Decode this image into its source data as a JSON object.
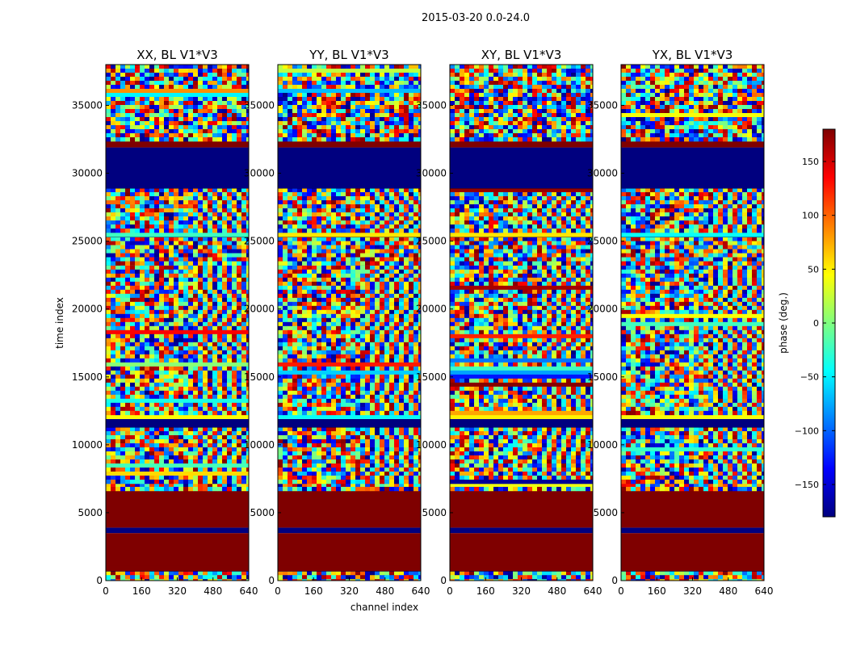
{
  "chart_data": {
    "type": "heatmap",
    "suptitle": "2015-03-20 0.0-24.0",
    "xlabel": "channel index",
    "ylabel": "time index",
    "xlim": [
      0,
      640
    ],
    "ylim": [
      0,
      38000
    ],
    "xticks": [
      0,
      160,
      320,
      480,
      640
    ],
    "yticks": [
      0,
      5000,
      10000,
      15000,
      20000,
      25000,
      30000,
      35000
    ],
    "colorbar": {
      "label": "phase (deg.)",
      "range": [
        -180,
        180
      ],
      "ticks": [
        -150,
        -100,
        -50,
        0,
        50,
        100,
        150
      ],
      "tick_labels": [
        "−150",
        "−100",
        "−50",
        "0",
        "50",
        "100",
        "150"
      ],
      "colormap": "jet"
    },
    "panels": [
      {
        "title": "XX, BL V1*V3"
      },
      {
        "title": "YY, BL V1*V3"
      },
      {
        "title": "XY, BL V1*V3"
      },
      {
        "title": "YX, BL V1*V3"
      }
    ],
    "segments": [
      {
        "t0": 0,
        "t1": 700,
        "kind": "noise"
      },
      {
        "t0": 700,
        "t1": 1100,
        "kind": "max"
      },
      {
        "t0": 1100,
        "t1": 3500,
        "kind": "max"
      },
      {
        "t0": 3500,
        "t1": 3900,
        "kind": "min"
      },
      {
        "t0": 3900,
        "t1": 6800,
        "kind": "max"
      },
      {
        "t0": 6800,
        "t1": 7200,
        "kind": "noise"
      },
      {
        "t0": 7200,
        "t1": 11300,
        "kind": "fringe"
      },
      {
        "t0": 11300,
        "t1": 11900,
        "kind": "min"
      },
      {
        "t0": 11900,
        "t1": 12300,
        "kind": "band"
      },
      {
        "t0": 12300,
        "t1": 23500,
        "kind": "fringe"
      },
      {
        "t0": 23500,
        "t1": 25300,
        "kind": "noise"
      },
      {
        "t0": 25300,
        "t1": 25700,
        "kind": "band"
      },
      {
        "t0": 25700,
        "t1": 28900,
        "kind": "fringe"
      },
      {
        "t0": 28900,
        "t1": 31900,
        "kind": "min"
      },
      {
        "t0": 31900,
        "t1": 32400,
        "kind": "max"
      },
      {
        "t0": 32400,
        "t1": 38000,
        "kind": "noise"
      }
    ]
  }
}
